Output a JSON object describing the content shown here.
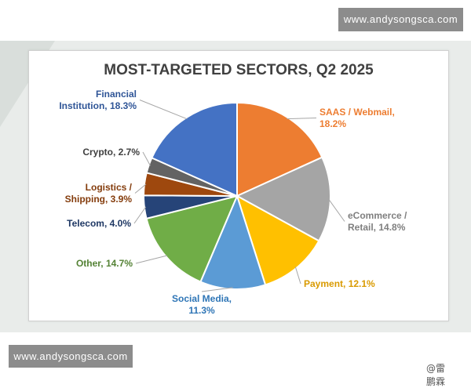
{
  "watermark": {
    "top_text": "www.andysongsca.com",
    "bottom_text": "www.andysongsca.com"
  },
  "credit": "@雷鹏霖",
  "chart_data": {
    "type": "pie",
    "title": "MOST-TARGETED SECTORS, Q2 2025",
    "slices": [
      {
        "label_lines": [
          "SAAS / Webmail,",
          "18.2%"
        ],
        "value": 18.2,
        "color": "#ed7d31"
      },
      {
        "label_lines": [
          "eCommerce /",
          "Retail, 14.8%"
        ],
        "value": 14.8,
        "color": "#a5a5a5"
      },
      {
        "label_lines": [
          "Payment, 12.1%"
        ],
        "value": 12.1,
        "color": "#ffc000"
      },
      {
        "label_lines": [
          "Social Media,",
          "11.3%"
        ],
        "value": 11.3,
        "color": "#5b9bd5"
      },
      {
        "label_lines": [
          "Other, 14.7%"
        ],
        "value": 14.7,
        "color": "#70ad47"
      },
      {
        "label_lines": [
          "Telecom, 4.0%"
        ],
        "value": 4.0,
        "color": "#264478"
      },
      {
        "label_lines": [
          "Logistics /",
          "Shipping, 3.9%"
        ],
        "value": 3.9,
        "color": "#9e480e"
      },
      {
        "label_lines": [
          "Crypto, 2.7%"
        ],
        "value": 2.7,
        "color": "#636363"
      },
      {
        "label_lines": [
          "Financial",
          "Institution, 18.3%"
        ],
        "value": 18.3,
        "color": "#4472c4"
      }
    ],
    "label_colors": [
      "#ed7d31",
      "#7f7f7f",
      "#d99a00",
      "#2e75b6",
      "#548235",
      "#1f3864",
      "#843c0c",
      "#404040",
      "#2f5597"
    ],
    "start_angle_deg": 0,
    "direction": "clockwise",
    "legend": "none (data labels with leader lines)"
  }
}
